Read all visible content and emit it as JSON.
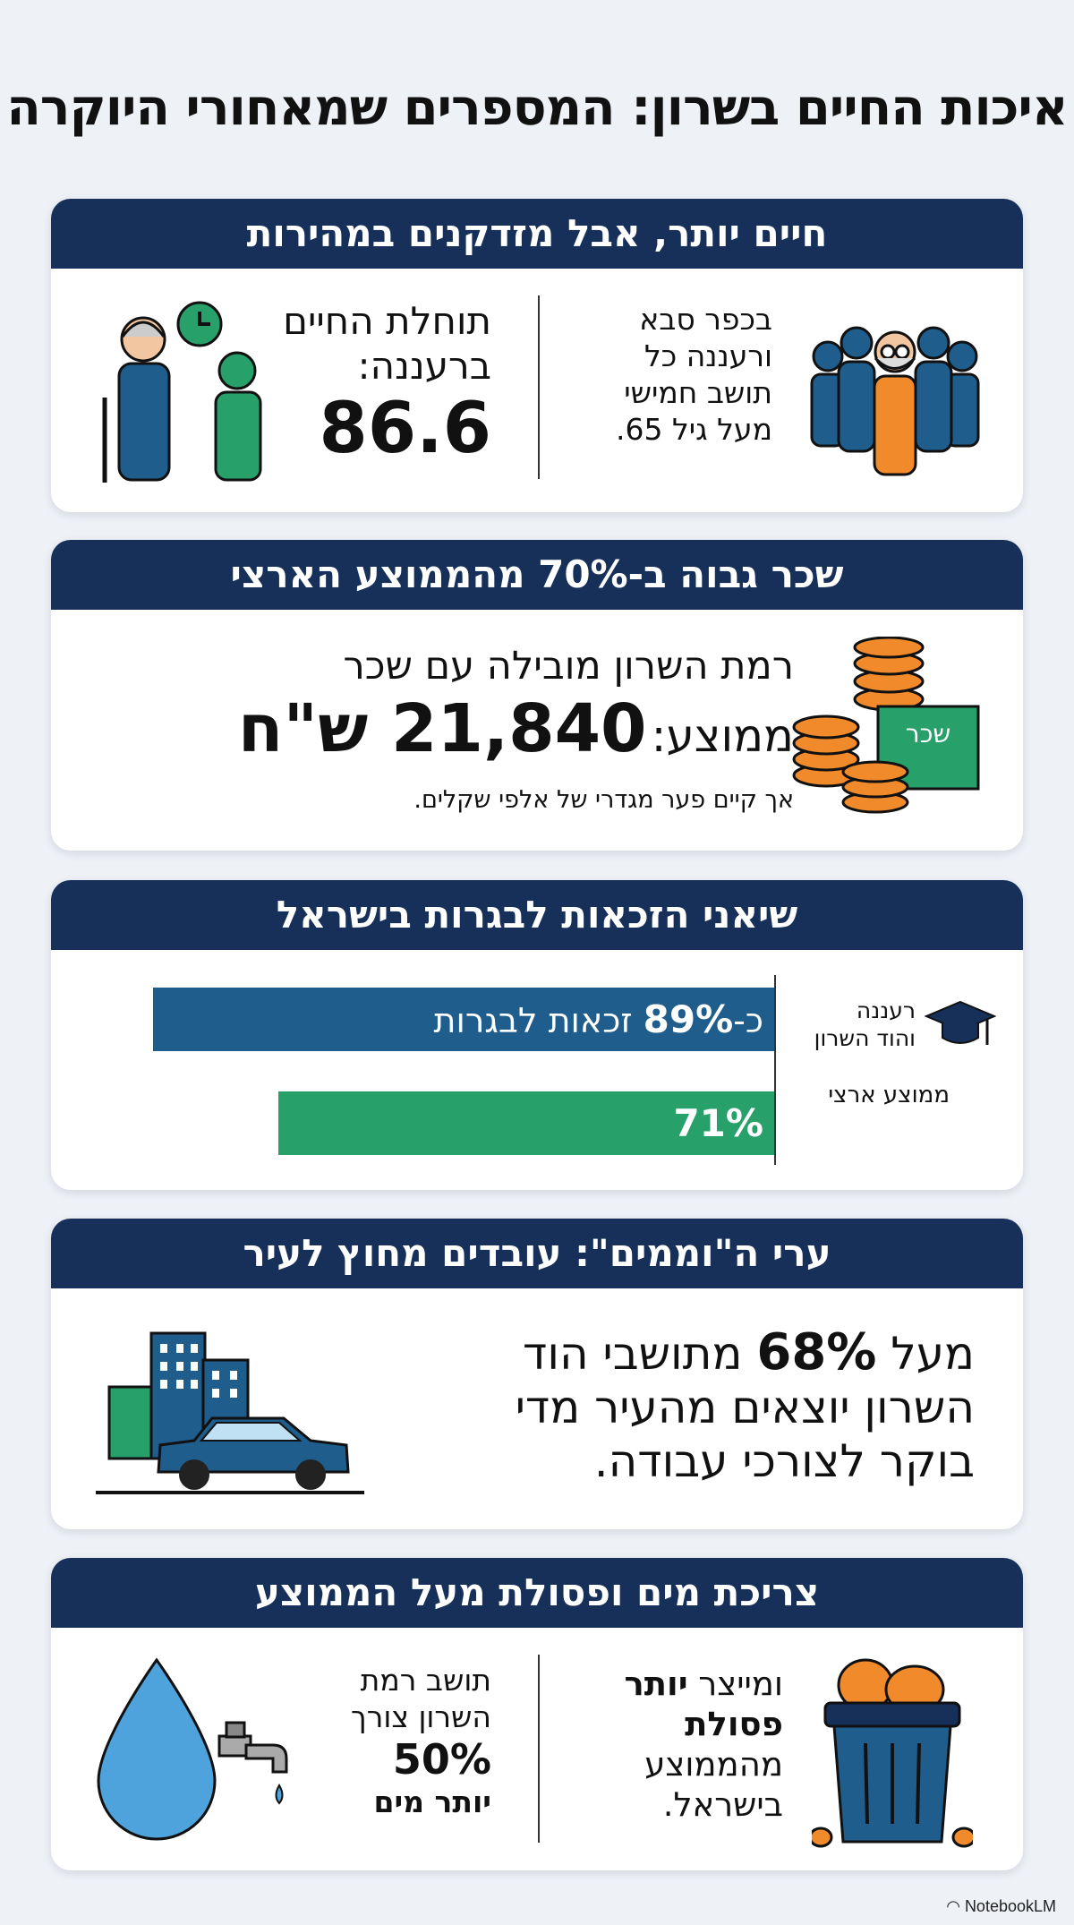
{
  "title": "איכות החיים בשרון: המספרים שמאחורי היוקרה",
  "sections": {
    "aging": {
      "header": "חיים יותר, אבל מזדקנים במהירות",
      "fact": [
        "בכפר סבא",
        "ורעננה כל",
        "תושב חמישי",
        "מעל גיל 65."
      ],
      "life_label": [
        "תוחלת החיים",
        "ברעננה:"
      ],
      "life_value": "86.6"
    },
    "salary": {
      "header": "שכר גבוה ב-70% מהממוצע הארצי",
      "line1": "רמת השרון מובילה עם שכר",
      "line2_prefix": "ממוצע:",
      "value": "21,840 ש\"ח",
      "note": "אך קיים פער מגדרי של אלפי שקלים.",
      "icon_label": "שכר"
    },
    "matriculation": {
      "header": "שיאני הזכאות לבגרות בישראל",
      "rows": [
        {
          "label": [
            "רעננה",
            "והוד השרון"
          ],
          "prefix": "כ-",
          "value_text": "89%",
          "suffix": " זכאות לבגרות",
          "value": 89,
          "color": "#1f5d8c"
        },
        {
          "label": [
            "ממוצע ארצי"
          ],
          "prefix": "",
          "value_text": "71%",
          "suffix": "",
          "value": 71,
          "color": "#27a06a"
        }
      ]
    },
    "commute": {
      "header": "ערי ה\"וממים\": עובדים מחוץ לעיר",
      "line1_prefix": "מעל ",
      "line1_value": "68%",
      "line1_suffix": " מתושבי הוד",
      "line2": "השרון יוצאים מהעיר מדי",
      "line3": "בוקר לצורכי עבודה."
    },
    "consumption": {
      "header": "צריכת מים ופסולת מעל הממוצע",
      "waste": [
        "ומייצר יותר",
        "פסולת",
        "מהממוצע",
        "בישראל."
      ],
      "water_label": [
        "תושב רמת",
        "השרון צורך"
      ],
      "water_value": "50%",
      "water_suffix": "יותר מים"
    }
  },
  "footer": "NotebookLM",
  "colors": {
    "navy": "#17305a",
    "blue": "#1f5d8c",
    "green": "#27a06a",
    "orange": "#f08a2a"
  }
}
